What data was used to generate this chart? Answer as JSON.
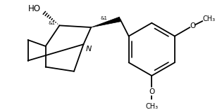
{
  "background_color": "#ffffff",
  "line_color": "#000000",
  "line_width": 1.3,
  "font_size_label": 7.0,
  "font_size_stereo": 5.0,
  "figsize": [
    3.15,
    1.57
  ],
  "dpi": 100,
  "HO_label": "HO",
  "N_label": "N",
  "stereo_left": "&1",
  "stereo_right": "&1"
}
